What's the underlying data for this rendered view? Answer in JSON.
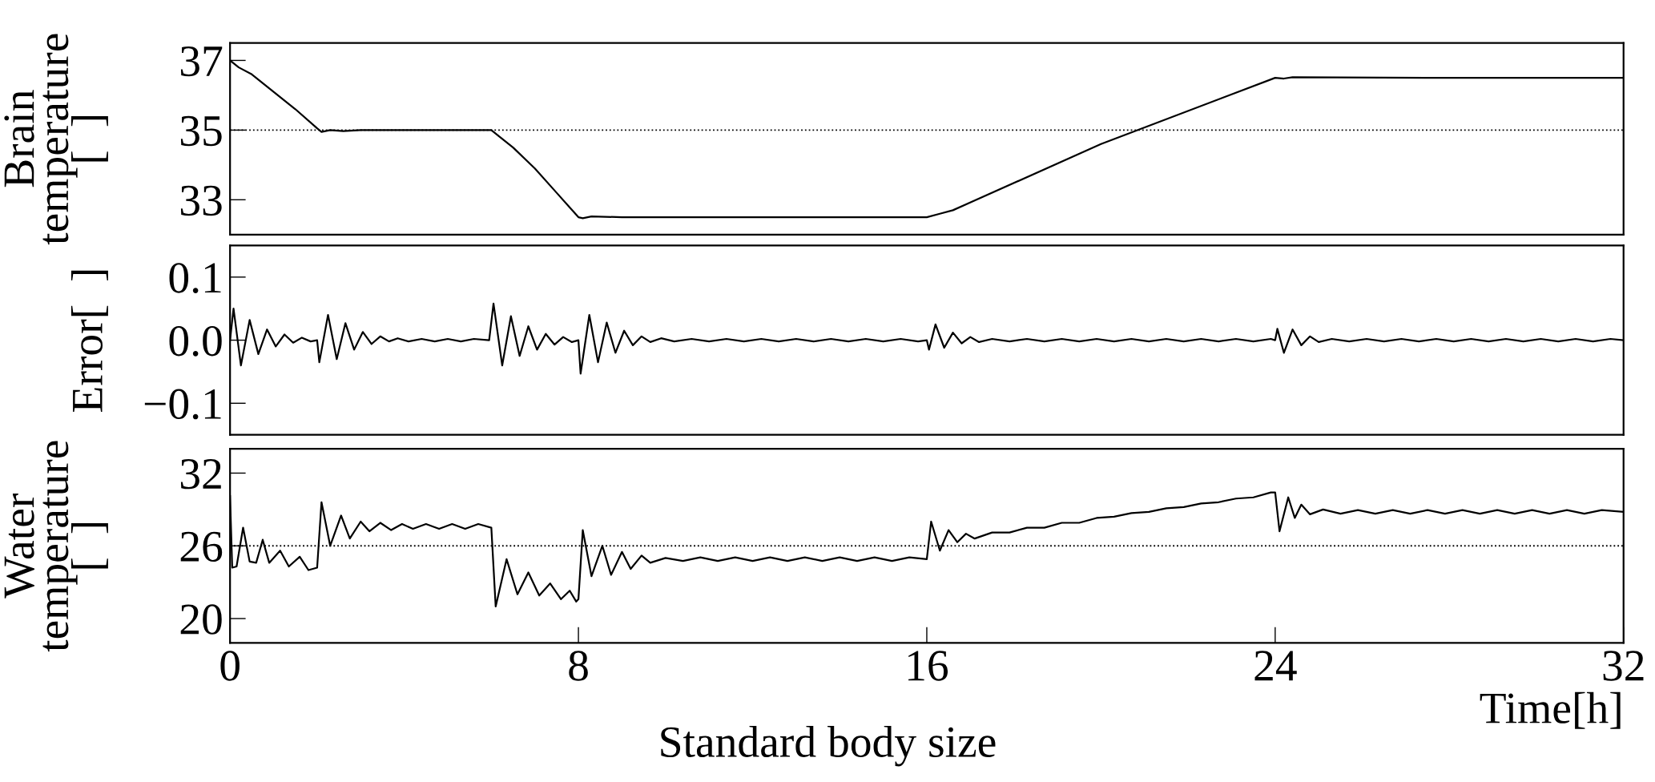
{
  "chart_data": [
    {
      "type": "line",
      "ylabel": "Brain\ntemperature\n[  ]",
      "xlim": [
        0,
        32
      ],
      "ylim": [
        32,
        37.5
      ],
      "yticks": [
        33,
        35,
        37
      ],
      "tick_labels": "y",
      "grid": false,
      "legend": false,
      "line_style": "solid",
      "marker": "none",
      "ref_lines": [
        {
          "axis": "y",
          "value": 35,
          "line_style": "dotted",
          "color": "#000000"
        }
      ],
      "series": [
        {
          "color": "#000000",
          "x": [
            0,
            0.2,
            0.5,
            1.0,
            1.5,
            2.0,
            2.1,
            2.3,
            2.6,
            3.0,
            4.0,
            5.0,
            6.0,
            6.2,
            6.5,
            7.0,
            7.5,
            8.0,
            8.1,
            8.3,
            9.0,
            12.0,
            16.0,
            16.3,
            16.6,
            20.0,
            24.0,
            24.2,
            24.4,
            28.0,
            32.0
          ],
          "values": [
            37.0,
            36.8,
            36.6,
            36.1,
            35.6,
            35.05,
            34.95,
            35.0,
            34.97,
            35.0,
            35.0,
            35.0,
            35.0,
            34.8,
            34.5,
            33.9,
            33.2,
            32.5,
            32.47,
            32.52,
            32.5,
            32.5,
            32.5,
            32.6,
            32.7,
            34.6,
            36.5,
            36.48,
            36.52,
            36.5,
            36.5
          ]
        }
      ]
    },
    {
      "type": "line",
      "ylabel": "Error[  ]",
      "xlim": [
        0,
        32
      ],
      "ylim": [
        -0.15,
        0.15
      ],
      "yticks": [
        {
          "value": -0.1,
          "label": "−0.1"
        },
        {
          "value": 0,
          "label": "0.0"
        },
        {
          "value": 0.1,
          "label": "0.1"
        }
      ],
      "tick_labels": "y",
      "grid": false,
      "legend": false,
      "line_style": "solid",
      "marker": "none",
      "series": [
        {
          "color": "#000000",
          "x": [
            0,
            0.08,
            0.25,
            0.45,
            0.65,
            0.85,
            1.05,
            1.25,
            1.45,
            1.65,
            1.85,
            2.0,
            2.05,
            2.25,
            2.45,
            2.65,
            2.85,
            3.05,
            3.25,
            3.45,
            3.65,
            3.85,
            4.1,
            4.4,
            4.7,
            5.0,
            5.3,
            5.6,
            5.95,
            6.05,
            6.25,
            6.45,
            6.65,
            6.85,
            7.05,
            7.25,
            7.45,
            7.65,
            7.85,
            8.0,
            8.05,
            8.25,
            8.45,
            8.65,
            8.85,
            9.05,
            9.25,
            9.45,
            9.65,
            9.9,
            10.2,
            10.6,
            11.0,
            11.4,
            11.8,
            12.2,
            12.6,
            13.0,
            13.4,
            13.8,
            14.2,
            14.6,
            15.0,
            15.4,
            15.8,
            16.0,
            16.05,
            16.2,
            16.4,
            16.6,
            16.8,
            17.0,
            17.2,
            17.5,
            17.9,
            18.3,
            18.7,
            19.1,
            19.5,
            19.9,
            20.3,
            20.7,
            21.1,
            21.5,
            21.9,
            22.3,
            22.7,
            23.1,
            23.5,
            23.9,
            24.0,
            24.05,
            24.2,
            24.4,
            24.6,
            24.8,
            25.0,
            25.3,
            25.7,
            26.1,
            26.5,
            26.9,
            27.3,
            27.7,
            28.1,
            28.5,
            28.9,
            29.3,
            29.7,
            30.1,
            30.5,
            30.9,
            31.3,
            31.7,
            32.0
          ],
          "values": [
            0,
            0.05,
            -0.04,
            0.032,
            -0.022,
            0.017,
            -0.01,
            0.009,
            -0.004,
            0.004,
            -0.002,
            0,
            -0.035,
            0.04,
            -0.03,
            0.027,
            -0.015,
            0.013,
            -0.006,
            0.006,
            -0.002,
            0.003,
            -0.002,
            0.002,
            -0.002,
            0.002,
            -0.002,
            0.002,
            0,
            0.058,
            -0.04,
            0.038,
            -0.025,
            0.022,
            -0.015,
            0.01,
            -0.007,
            0.005,
            -0.003,
            0,
            -0.053,
            0.04,
            -0.035,
            0.028,
            -0.02,
            0.015,
            -0.008,
            0.006,
            -0.003,
            0.003,
            -0.002,
            0.002,
            -0.002,
            0.002,
            -0.002,
            0.002,
            -0.002,
            0.002,
            -0.002,
            0.002,
            -0.002,
            0.002,
            -0.002,
            0.002,
            -0.002,
            0,
            -0.015,
            0.025,
            -0.012,
            0.012,
            -0.005,
            0.005,
            -0.003,
            0.002,
            -0.002,
            0.002,
            -0.002,
            0.002,
            -0.002,
            0.002,
            -0.002,
            0.002,
            -0.002,
            0.002,
            -0.002,
            0.002,
            -0.002,
            0.002,
            -0.002,
            0.002,
            0,
            0.018,
            -0.02,
            0.017,
            -0.008,
            0.006,
            -0.003,
            0.002,
            -0.002,
            0.002,
            -0.002,
            0.002,
            -0.002,
            0.002,
            -0.002,
            0.002,
            -0.002,
            0.002,
            -0.002,
            0.002,
            -0.002,
            0.002,
            -0.002,
            0.002,
            0
          ]
        }
      ]
    },
    {
      "type": "line",
      "ylabel": "Water\ntemperature\n[  ]",
      "xlabel": "Time[h]",
      "annotations": [
        "Standard body size"
      ],
      "xlim": [
        0,
        32
      ],
      "xticks": [
        0,
        8,
        16,
        24,
        32
      ],
      "ylim": [
        18,
        34
      ],
      "yticks": [
        20,
        26,
        32
      ],
      "grid": false,
      "legend": false,
      "line_style": "solid",
      "marker": "none",
      "ref_lines": [
        {
          "axis": "y",
          "value": 26,
          "line_style": "dotted",
          "color": "#000000"
        }
      ],
      "series": [
        {
          "color": "#000000",
          "x": [
            0,
            0.05,
            0.15,
            0.3,
            0.45,
            0.6,
            0.75,
            0.9,
            1.15,
            1.35,
            1.6,
            1.8,
            2.0,
            2.1,
            2.3,
            2.55,
            2.75,
            3.0,
            3.2,
            3.45,
            3.7,
            3.95,
            4.2,
            4.5,
            4.8,
            5.1,
            5.4,
            5.7,
            6.0,
            6.1,
            6.35,
            6.6,
            6.85,
            7.1,
            7.35,
            7.6,
            7.8,
            7.95,
            8.0,
            8.1,
            8.3,
            8.55,
            8.75,
            9.0,
            9.2,
            9.45,
            9.65,
            10.0,
            10.4,
            10.8,
            11.2,
            11.6,
            12.0,
            12.4,
            12.8,
            13.2,
            13.6,
            14.0,
            14.4,
            14.8,
            15.2,
            15.6,
            16.0,
            16.1,
            16.3,
            16.5,
            16.7,
            16.9,
            17.1,
            17.5,
            17.9,
            18.3,
            18.7,
            19.1,
            19.5,
            19.9,
            20.3,
            20.7,
            21.1,
            21.5,
            21.9,
            22.3,
            22.7,
            23.1,
            23.5,
            23.9,
            24.0,
            24.1,
            24.3,
            24.45,
            24.6,
            24.8,
            25.1,
            25.5,
            25.9,
            26.3,
            26.7,
            27.1,
            27.5,
            27.9,
            28.3,
            28.7,
            29.1,
            29.5,
            29.9,
            30.3,
            30.7,
            31.1,
            31.5,
            32.0
          ],
          "values": [
            30.1,
            24.2,
            24.3,
            27.5,
            24.7,
            24.6,
            26.5,
            24.6,
            25.6,
            24.3,
            25.1,
            24.0,
            24.2,
            29.6,
            26.0,
            28.5,
            26.6,
            28.0,
            27.2,
            27.9,
            27.3,
            27.8,
            27.4,
            27.8,
            27.4,
            27.8,
            27.4,
            27.8,
            27.5,
            21.0,
            24.9,
            22.0,
            23.8,
            21.9,
            22.9,
            21.6,
            22.3,
            21.4,
            21.6,
            27.3,
            23.5,
            26.0,
            23.6,
            25.5,
            24.1,
            25.2,
            24.6,
            25.0,
            24.75,
            25.05,
            24.75,
            25.05,
            24.75,
            25.05,
            24.75,
            25.05,
            24.75,
            25.05,
            24.75,
            25.05,
            24.75,
            25.05,
            24.9,
            28.0,
            25.6,
            27.3,
            26.3,
            27.0,
            26.6,
            27.1,
            27.1,
            27.5,
            27.5,
            27.9,
            27.9,
            28.3,
            28.4,
            28.7,
            28.8,
            29.1,
            29.2,
            29.5,
            29.6,
            29.9,
            30.0,
            30.4,
            30.4,
            27.2,
            30.0,
            28.3,
            29.4,
            28.6,
            29.0,
            28.65,
            28.95,
            28.65,
            28.95,
            28.65,
            28.95,
            28.65,
            28.95,
            28.65,
            28.95,
            28.65,
            28.95,
            28.65,
            28.95,
            28.65,
            28.95,
            28.8
          ]
        }
      ]
    }
  ]
}
